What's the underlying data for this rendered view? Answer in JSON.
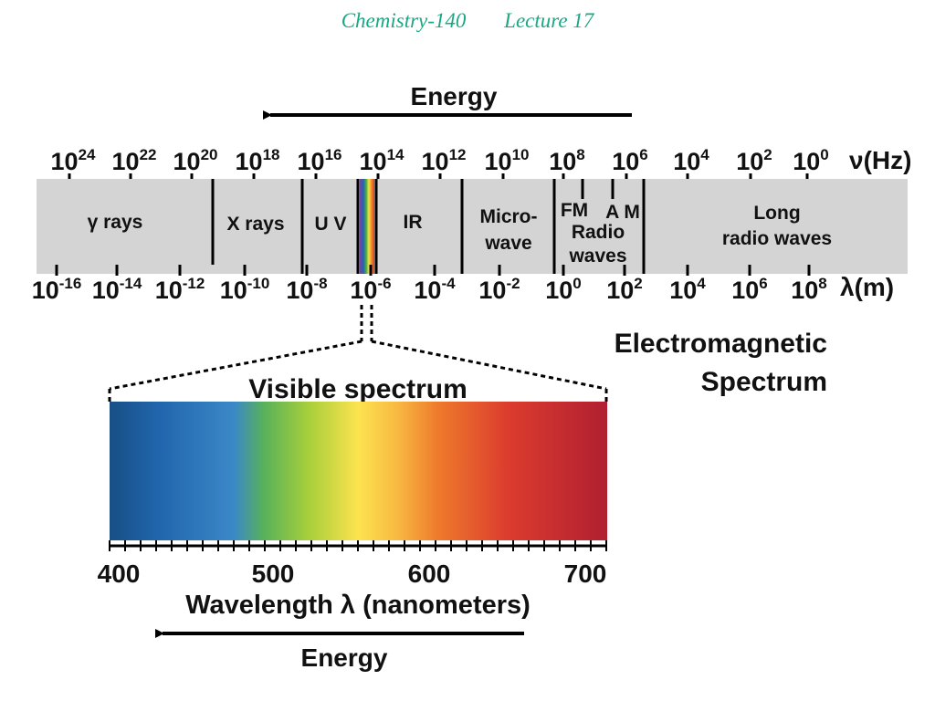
{
  "header": {
    "course": "Chemistry-140",
    "lecture": "Lecture 17"
  },
  "diagram": {
    "energy_top": "Energy",
    "frequency_unit": "ν(Hz)",
    "frequency_ticks": [
      {
        "base": "10",
        "exp": "24"
      },
      {
        "base": "10",
        "exp": "22"
      },
      {
        "base": "10",
        "exp": "20"
      },
      {
        "base": "10",
        "exp": "18"
      },
      {
        "base": "10",
        "exp": "16"
      },
      {
        "base": "10",
        "exp": "14"
      },
      {
        "base": "10",
        "exp": "12"
      },
      {
        "base": "10",
        "exp": "10"
      },
      {
        "base": "10",
        "exp": "8"
      },
      {
        "base": "10",
        "exp": "6"
      },
      {
        "base": "10",
        "exp": "4"
      },
      {
        "base": "10",
        "exp": "2"
      },
      {
        "base": "10",
        "exp": "0"
      }
    ],
    "bands": [
      {
        "label": [
          "γ rays"
        ]
      },
      {
        "label": [
          "X rays"
        ]
      },
      {
        "label": [
          "U V"
        ]
      },
      {
        "label": [
          "IR"
        ]
      },
      {
        "label": [
          "Micro-",
          "wave"
        ]
      },
      {
        "label": [
          "FM",
          "Radio",
          "waves"
        ]
      },
      {
        "label": [
          "A M"
        ]
      },
      {
        "label": [
          "Long",
          "radio waves"
        ]
      }
    ],
    "wavelength_unit": "λ(m)",
    "wavelength_ticks": [
      {
        "base": "10",
        "exp": "-16"
      },
      {
        "base": "10",
        "exp": "-14"
      },
      {
        "base": "10",
        "exp": "-12"
      },
      {
        "base": "10",
        "exp": "-10"
      },
      {
        "base": "10",
        "exp": "-8"
      },
      {
        "base": "10",
        "exp": "-6"
      },
      {
        "base": "10",
        "exp": "-4"
      },
      {
        "base": "10",
        "exp": "-2"
      },
      {
        "base": "10",
        "exp": "0"
      },
      {
        "base": "10",
        "exp": "2"
      },
      {
        "base": "10",
        "exp": "4"
      },
      {
        "base": "10",
        "exp": "6"
      },
      {
        "base": "10",
        "exp": "8"
      }
    ],
    "title_line1": "Electromagnetic",
    "title_line2": "Spectrum",
    "visible_title": "Visible spectrum",
    "visible_ticks": [
      "400",
      "500",
      "600",
      "700"
    ],
    "visible_axis_label": "Wavelength λ (nanometers)",
    "energy_bottom": "Energy",
    "colors": {
      "band_fill": "#d4d4d4",
      "violet": "#7b3fa0",
      "blue": "#1f66b0",
      "green": "#4caf3a",
      "yellow": "#fbe04a",
      "orange": "#f08a2a",
      "red": "#e13a2c",
      "deep_red": "#b81d2e"
    }
  }
}
